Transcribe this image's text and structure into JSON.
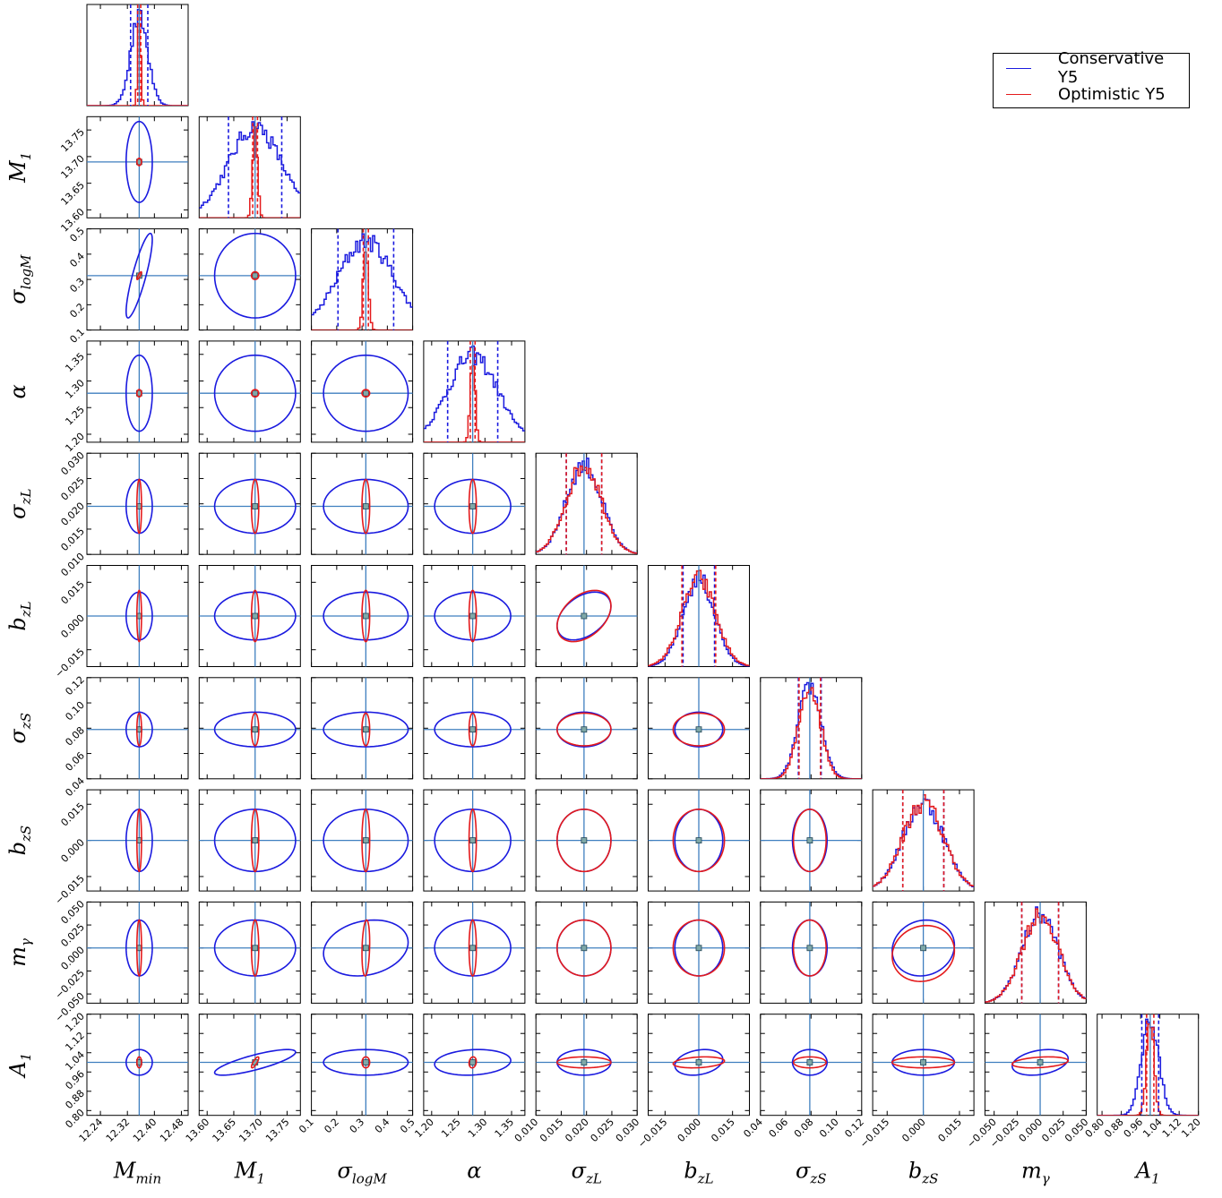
{
  "chart_data": {
    "type": "corner",
    "n_params": 10,
    "params": [
      {
        "key": "Mmin",
        "label": "M",
        "sub": "min",
        "center": 12.355,
        "range": [
          12.2,
          12.5
        ],
        "ticks": [
          12.24,
          12.32,
          12.4,
          12.48
        ],
        "tick_labels": [
          "12.24",
          "12.32",
          "12.40",
          "12.48"
        ],
        "cons_sigma": 0.0255,
        "opt_sigma": 0.0045
      },
      {
        "key": "M1",
        "label": "M",
        "sub": "1",
        "center": 13.69,
        "range": [
          13.585,
          13.775
        ],
        "ticks": [
          13.6,
          13.65,
          13.7,
          13.75
        ],
        "tick_labels": [
          "13.60",
          "13.65",
          "13.70",
          "13.75"
        ],
        "cons_sigma": 0.05,
        "opt_sigma": 0.0045
      },
      {
        "key": "sigma_logM",
        "label": "σ",
        "sub": "logM",
        "center": 0.315,
        "range": [
          0.1,
          0.5
        ],
        "ticks": [
          0.1,
          0.2,
          0.3,
          0.4,
          0.5
        ],
        "tick_labels": [
          "0.1",
          "0.2",
          "0.3",
          "0.4",
          "0.5"
        ],
        "cons_sigma": 0.11,
        "opt_sigma": 0.01
      },
      {
        "key": "alpha",
        "label": "α",
        "sub": "",
        "center": 1.277,
        "range": [
          1.185,
          1.375
        ],
        "ticks": [
          1.2,
          1.25,
          1.3,
          1.35
        ],
        "tick_labels": [
          "1.20",
          "1.25",
          "1.30",
          "1.35"
        ],
        "cons_sigma": 0.047,
        "opt_sigma": 0.0045
      },
      {
        "key": "sigma_zL",
        "label": "σ",
        "sub": "zL",
        "center": 0.0195,
        "range": [
          0.01,
          0.03
        ],
        "ticks": [
          0.01,
          0.015,
          0.02,
          0.025,
          0.03
        ],
        "tick_labels": [
          "0.010",
          "0.015",
          "0.020",
          "0.025",
          "0.030"
        ],
        "cons_sigma": 0.0035,
        "opt_sigma": 0.0035
      },
      {
        "key": "b_zL",
        "label": "b",
        "sub": "zL",
        "center": 0.0,
        "range": [
          -0.0225,
          0.0225
        ],
        "ticks": [
          -0.015,
          0.0,
          0.015
        ],
        "tick_labels": [
          "−0.015",
          "0.000",
          "0.015"
        ],
        "cons_sigma": 0.007,
        "opt_sigma": 0.0075
      },
      {
        "key": "sigma_zS",
        "label": "σ",
        "sub": "zS",
        "center": 0.079,
        "range": [
          0.04,
          0.12
        ],
        "ticks": [
          0.04,
          0.06,
          0.08,
          0.1,
          0.12
        ],
        "tick_labels": [
          "0.04",
          "0.06",
          "0.08",
          "0.10",
          "0.12"
        ],
        "cons_sigma": 0.009,
        "opt_sigma": 0.0085
      },
      {
        "key": "b_zS",
        "label": "b",
        "sub": "zS",
        "center": 0.0,
        "range": [
          -0.021,
          0.021
        ],
        "ticks": [
          -0.015,
          0.0,
          0.015
        ],
        "tick_labels": [
          "−0.015",
          "0.000",
          "0.015"
        ],
        "cons_sigma": 0.0085,
        "opt_sigma": 0.0085
      },
      {
        "key": "m_gamma",
        "label": "m",
        "sub": "γ",
        "center": 0.0,
        "range": [
          -0.06,
          0.05
        ],
        "ticks": [
          -0.05,
          -0.025,
          0.0,
          0.025,
          0.05
        ],
        "tick_labels": [
          "−0.050",
          "−0.025",
          "0.000",
          "0.025",
          "0.050"
        ],
        "cons_sigma": 0.02,
        "opt_sigma": 0.02
      },
      {
        "key": "A1",
        "label": "A",
        "sub": "1",
        "center": 1.0,
        "range": [
          0.78,
          1.2
        ],
        "ticks": [
          0.8,
          0.88,
          0.96,
          1.04,
          1.12,
          1.2
        ],
        "tick_labels": [
          "0.80",
          "0.88",
          "0.96",
          "1.04",
          "1.12",
          "1.20"
        ],
        "cons_sigma": 0.035,
        "opt_sigma": 0.015
      }
    ],
    "series": [
      {
        "name": "Conservative Y5",
        "color": "#1a1adf"
      },
      {
        "name": "Optimistic Y5",
        "color": "#e41a1c"
      }
    ],
    "truth_color": "#3f7fbf",
    "legend_position": "top-right"
  },
  "legend": {
    "items": [
      {
        "label": "Conservative Y5",
        "color": "#1a1adf"
      },
      {
        "label": "Optimistic Y5",
        "color": "#e41a1c"
      }
    ]
  }
}
